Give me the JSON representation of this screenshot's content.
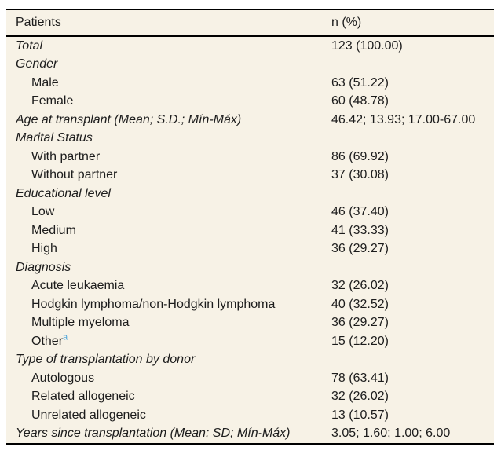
{
  "table": {
    "columns": [
      "Patients",
      "n (%)"
    ],
    "rows": [
      {
        "label": "Total",
        "value": "123 (100.00)",
        "style": "category"
      },
      {
        "label": "Gender",
        "value": "",
        "style": "category"
      },
      {
        "label": "Male",
        "value": "63 (51.22)",
        "style": "item"
      },
      {
        "label": "Female",
        "value": "60 (48.78)",
        "style": "item"
      },
      {
        "label": "Age at transplant (Mean; S.D.; Mín-Máx)",
        "value": "46.42; 13.93; 17.00-67.00",
        "style": "category"
      },
      {
        "label": "Marital Status",
        "value": "",
        "style": "category"
      },
      {
        "label": "With partner",
        "value": "86 (69.92)",
        "style": "item"
      },
      {
        "label": "Without partner",
        "value": "37 (30.08)",
        "style": "item"
      },
      {
        "label": "Educational level",
        "value": "",
        "style": "category"
      },
      {
        "label": "Low",
        "value": "46 (37.40)",
        "style": "item"
      },
      {
        "label": "Medium",
        "value": "41 (33.33)",
        "style": "item"
      },
      {
        "label": "High",
        "value": "36 (29.27)",
        "style": "item"
      },
      {
        "label": "Diagnosis",
        "value": "",
        "style": "category"
      },
      {
        "label": "Acute leukaemia",
        "value": "32 (26.02)",
        "style": "item"
      },
      {
        "label": "Hodgkin lymphoma/non-Hodgkin lymphoma",
        "value": "40 (32.52)",
        "style": "item"
      },
      {
        "label": "Multiple myeloma",
        "value": "36 (29.27)",
        "style": "item"
      },
      {
        "label": "Other",
        "sup": "a",
        "value": "15 (12.20)",
        "style": "item"
      },
      {
        "label": "Type of transplantation by donor",
        "value": "",
        "style": "category"
      },
      {
        "label": "Autologous",
        "value": "78 (63.41)",
        "style": "item"
      },
      {
        "label": "Related allogeneic",
        "value": "32 (26.02)",
        "style": "item"
      },
      {
        "label": "Unrelated allogeneic",
        "value": "13 (10.57)",
        "style": "item"
      },
      {
        "label": "Years since transplantation (Mean; SD; Mín-Máx)",
        "value": "3.05; 1.60; 1.00; 6.00",
        "style": "category"
      }
    ],
    "colors": {
      "table_background": "#f7f2e6",
      "rule": "#000000",
      "text": "#1c1c1c",
      "footnote_marker": "#4aa4da"
    }
  }
}
